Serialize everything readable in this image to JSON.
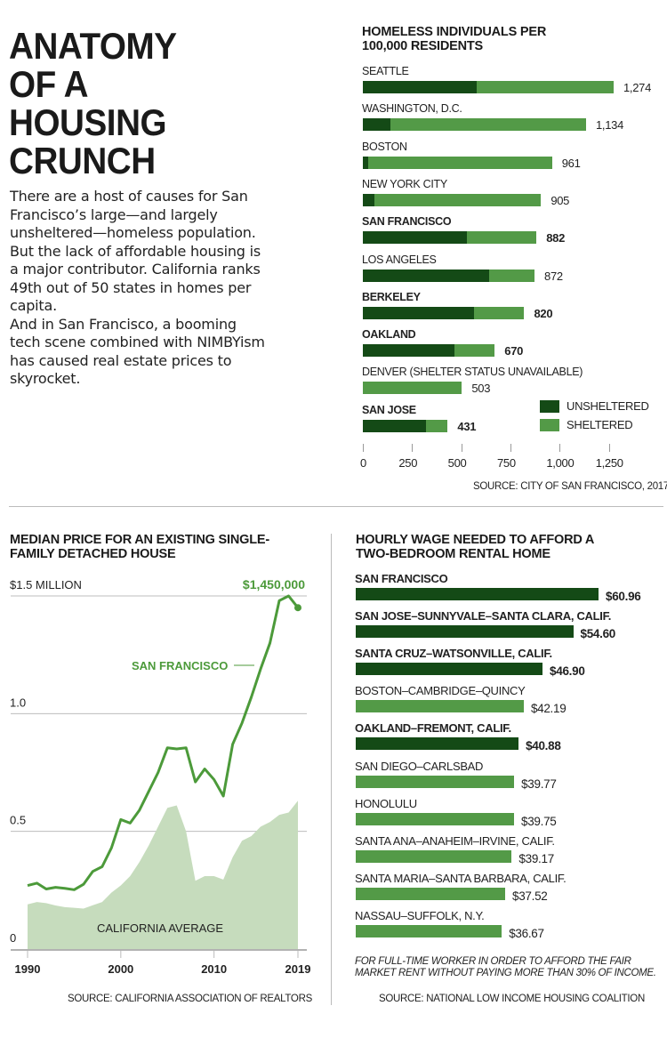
{
  "headline": [
    "ANATOMY",
    "OF A",
    "HOUSING",
    "CRUNCH"
  ],
  "intro_text": "There are a host of causes for San Francisco’s large—and largely unsheltered—homeless population. But the lack of affordable housing is a major contributor. California ranks 49th out of 50 states in homes per capita.",
  "intro_text_2": "And in San Francisco, a booming tech scene combined with NIMBYism has caused real estate prices to skyrocket.",
  "colors": {
    "dark_green": "#144a16",
    "light_green": "#539a47",
    "area_green": "#c6dcbd",
    "line_green": "#4c9a3a"
  },
  "chart_data": [
    {
      "type": "bar",
      "stacked": true,
      "orientation": "horizontal",
      "title": "HOMELESS INDIVIDUALS PER 100,000 RESIDENTS",
      "categories": [
        "SEATTLE",
        "WASHINGTON, D.C.",
        "BOSTON",
        "NEW YORK CITY",
        "SAN FRANCISCO",
        "LOS ANGELES",
        "BERKELEY",
        "OAKLAND",
        "DENVER (SHELTER STATUS UNAVAILABLE)",
        "SAN JOSE"
      ],
      "bold_categories": [
        "SAN FRANCISCO",
        "BERKELEY",
        "OAKLAND",
        "SAN JOSE"
      ],
      "totals": [
        1274,
        1134,
        961,
        905,
        882,
        872,
        820,
        670,
        503,
        431
      ],
      "total_labels": [
        "1,274",
        "1,134",
        "961",
        "905",
        "882",
        "872",
        "820",
        "670",
        "503",
        "431"
      ],
      "series": [
        {
          "name": "UNSHELTERED",
          "values": [
            578,
            140,
            28,
            57,
            528,
            640,
            563,
            465,
            0,
            322
          ]
        },
        {
          "name": "SHELTERED",
          "values": [
            696,
            994,
            933,
            848,
            354,
            232,
            257,
            205,
            503,
            109
          ]
        }
      ],
      "xlim": [
        0,
        1250
      ],
      "xticks": [
        0,
        250,
        500,
        750,
        1000,
        1250
      ],
      "xtick_labels": [
        "0",
        "250",
        "500",
        "750",
        "1,000",
        "1,250"
      ],
      "legend": [
        "UNSHELTERED",
        "SHELTERED"
      ],
      "legend_position": "bottom-right",
      "source": "SOURCE: CITY OF SAN FRANCISCO, 2017"
    },
    {
      "type": "line",
      "title": "MEDIAN PRICE FOR AN EXISTING SINGLE-FAMILY DETACHED HOUSE",
      "x": [
        1990,
        1991,
        1992,
        1993,
        1994,
        1995,
        1996,
        1997,
        1998,
        1999,
        2000,
        2001,
        2002,
        2003,
        2004,
        2005,
        2006,
        2007,
        2008,
        2009,
        2010,
        2011,
        2012,
        2013,
        2014,
        2015,
        2016,
        2017,
        2018,
        2019
      ],
      "series": [
        {
          "name": "SAN FRANCISCO",
          "style": "line",
          "values": [
            0.27,
            0.28,
            0.255,
            0.262,
            0.258,
            0.252,
            0.275,
            0.33,
            0.35,
            0.43,
            0.55,
            0.535,
            0.59,
            0.67,
            0.75,
            0.855,
            0.85,
            0.855,
            0.71,
            0.765,
            0.72,
            0.65,
            0.87,
            0.96,
            1.07,
            1.19,
            1.3,
            1.48,
            1.5,
            1.45
          ]
        },
        {
          "name": "CALIFORNIA AVERAGE",
          "style": "area",
          "values": [
            0.19,
            0.2,
            0.195,
            0.185,
            0.178,
            0.175,
            0.172,
            0.186,
            0.2,
            0.24,
            0.27,
            0.31,
            0.37,
            0.44,
            0.52,
            0.6,
            0.61,
            0.5,
            0.29,
            0.31,
            0.31,
            0.295,
            0.39,
            0.46,
            0.48,
            0.52,
            0.54,
            0.57,
            0.58,
            0.63
          ]
        }
      ],
      "ylim": [
        0,
        1.5
      ],
      "yticks": [
        0,
        0.5,
        1.0,
        1.5
      ],
      "ytick_labels": [
        "0",
        "0.5",
        "1.0",
        "$1.5 MILLION"
      ],
      "xticks": [
        1990,
        2000,
        2010,
        2019
      ],
      "xtick_labels": [
        "1990",
        "2000",
        "2010",
        "2019"
      ],
      "annotations": {
        "peak_label": "$1,450,000",
        "sf_label": "SAN FRANCISCO",
        "ca_label": "CALIFORNIA AVERAGE"
      },
      "grid": true,
      "source": "SOURCE: CALIFORNIA ASSOCIATION OF REALTORS"
    },
    {
      "type": "bar",
      "orientation": "horizontal",
      "title": "HOURLY WAGE NEEDED TO AFFORD A TWO-BEDROOM RENTAL HOME",
      "categories": [
        "SAN FRANCISCO",
        "SAN JOSE–SUNNYVALE–SANTA CLARA, CALIF.",
        "SANTA CRUZ–WATSONVILLE, CALIF.",
        "BOSTON–CAMBRIDGE–QUINCY",
        "OAKLAND–FREMONT, CALIF.",
        "SAN DIEGO–CARLSBAD",
        "HONOLULU",
        "SANTA ANA–ANAHEIM–IRVINE, CALIF.",
        "SANTA MARIA–SANTA BARBARA, CALIF.",
        "NASSAU–SUFFOLK, N.Y."
      ],
      "values": [
        60.96,
        54.6,
        46.9,
        42.19,
        40.88,
        39.77,
        39.75,
        39.17,
        37.52,
        36.67
      ],
      "value_labels": [
        "$60.96",
        "$54.60",
        "$46.90",
        "$42.19",
        "$40.88",
        "$39.77",
        "$39.75",
        "$39.17",
        "$37.52",
        "$36.67"
      ],
      "highlighted": [
        true,
        true,
        true,
        false,
        true,
        false,
        false,
        false,
        false,
        false
      ],
      "footnote": "FOR FULL-TIME WORKER IN ORDER TO AFFORD THE FAIR MARKET RENT WITHOUT PAYING MORE THAN 30% OF INCOME.",
      "source": "SOURCE: NATIONAL LOW INCOME HOUSING COALITION"
    }
  ]
}
